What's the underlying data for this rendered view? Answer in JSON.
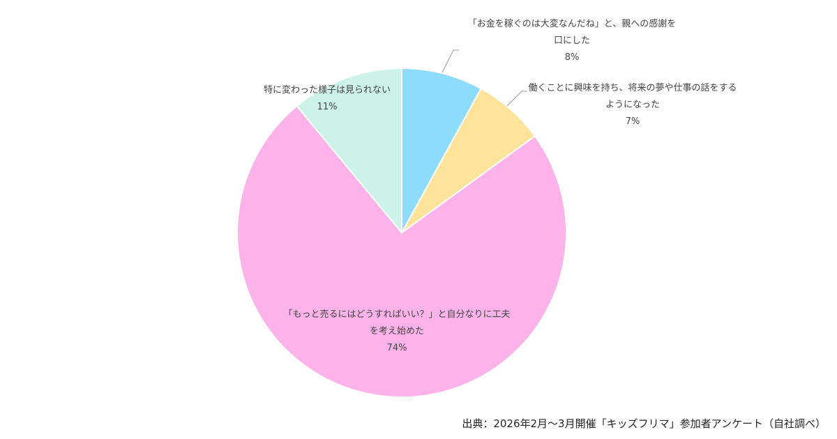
{
  "chart_data": {
    "type": "pie",
    "start_angle_deg": 0,
    "direction": "clockwise",
    "slices": [
      {
        "label_lines": [
          "「お金を稼ぐのは大変なんだね」と、親への感謝を",
          "口にした"
        ],
        "value": 8,
        "value_label": "8%",
        "color": "#8ddcfc"
      },
      {
        "label_lines": [
          "働くことに興味を持ち、将来の夢や仕事の話をする",
          "ようになった"
        ],
        "value": 7,
        "value_label": "7%",
        "color": "#fde49a"
      },
      {
        "label_lines": [
          "「もっと売るにはどうすればいい？」と自分なりに工夫",
          "を考え始めた"
        ],
        "value": 74,
        "value_label": "74%",
        "color": "#fbb3ea"
      },
      {
        "label_lines": [
          "特に変わった様子は見られない"
        ],
        "value": 11,
        "value_label": "11%",
        "color": "#cdf2ea"
      }
    ],
    "slice_border_color": "#ffffff",
    "leader_line_color": "#999999"
  },
  "source": "出典：2026年2月〜3月開催「キッズフリマ」参加者アンケート（自社調べ）"
}
